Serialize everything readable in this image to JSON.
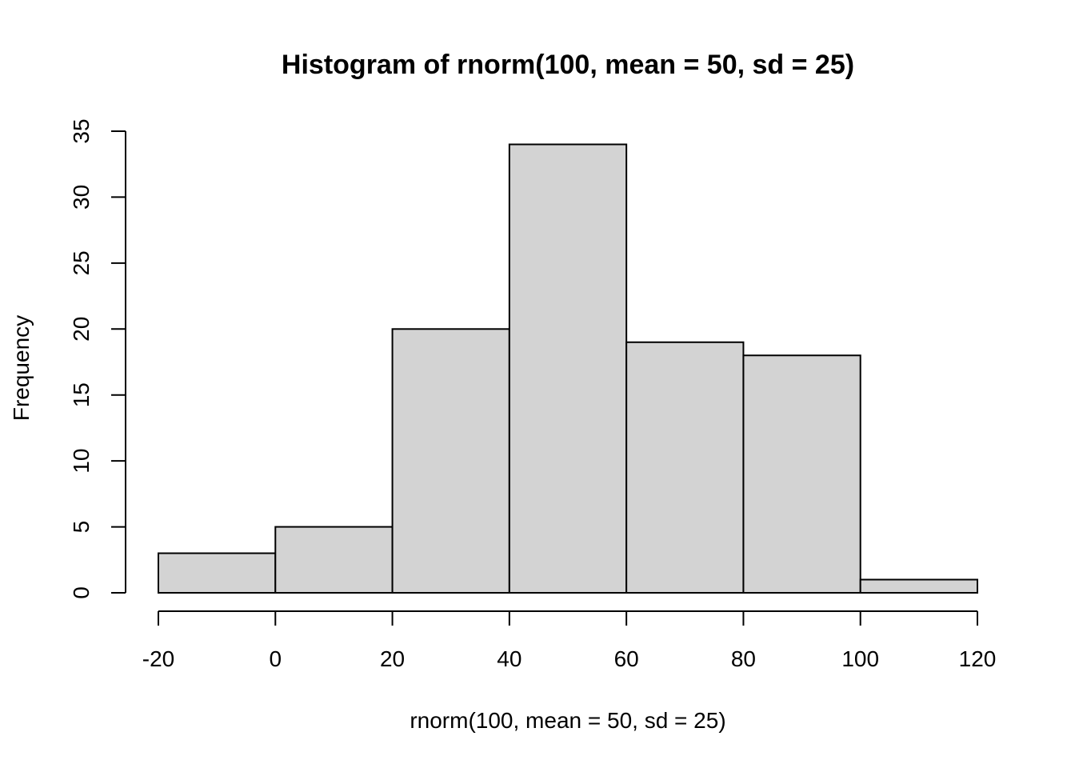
{
  "chart_data": {
    "type": "bar",
    "title": "Histogram of rnorm(100, mean = 50, sd = 25)",
    "xlabel": "rnorm(100, mean = 50, sd = 25)",
    "ylabel": "Frequency",
    "bin_edges": [
      -20,
      0,
      20,
      40,
      60,
      80,
      100,
      120
    ],
    "categories": [
      "-20 to 0",
      "0 to 20",
      "20 to 40",
      "40 to 60",
      "60 to 80",
      "80 to 100",
      "100 to 120"
    ],
    "values": [
      3,
      5,
      20,
      34,
      19,
      18,
      1
    ],
    "xlim": [
      -20,
      120
    ],
    "ylim": [
      0,
      35
    ],
    "x_ticks": [
      -20,
      0,
      20,
      40,
      60,
      80,
      100,
      120
    ],
    "y_ticks": [
      0,
      5,
      10,
      15,
      20,
      25,
      30,
      35
    ],
    "grid": false,
    "colors": {
      "bar_fill": "#d3d3d3",
      "bar_stroke": "#000000"
    }
  }
}
